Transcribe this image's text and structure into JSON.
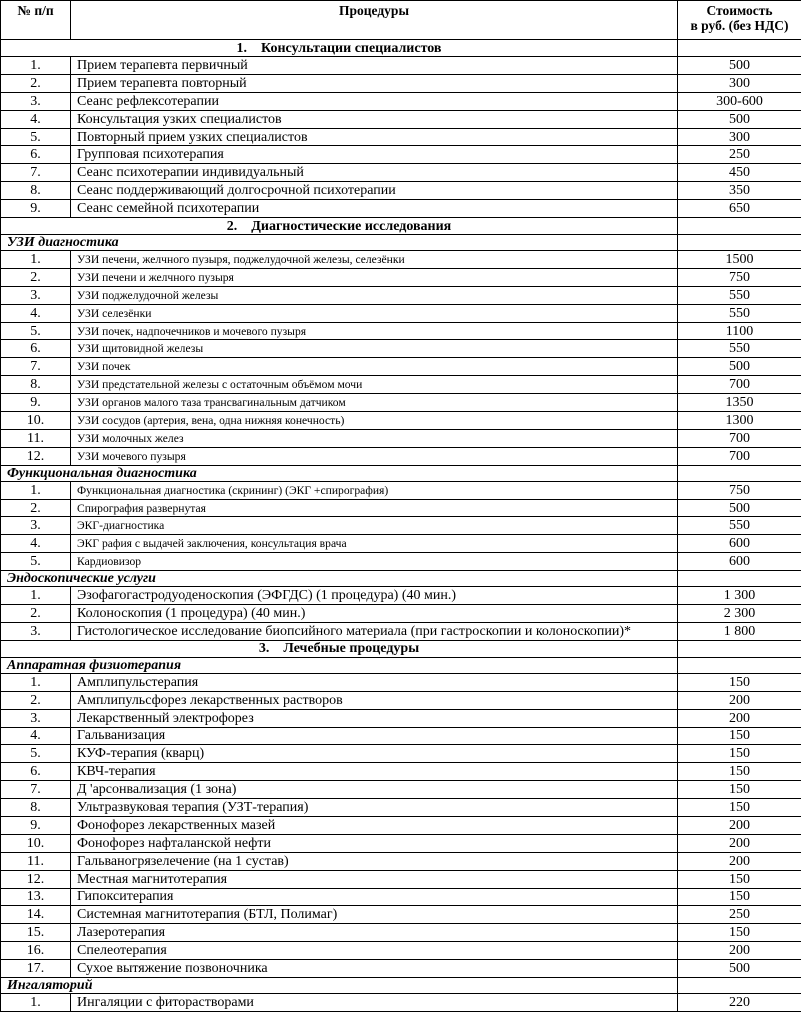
{
  "header": {
    "num": "№ п/п",
    "procedures": "Процедуры",
    "cost": [
      "Стоимость",
      "в руб. (без НДС)"
    ]
  },
  "sections": [
    {
      "number": "1.",
      "title": "Консультации специалистов",
      "items": [
        [
          "1.",
          "Прием терапевта первичный",
          "500"
        ],
        [
          "2.",
          "Прием терапевта повторный",
          "300"
        ],
        [
          "3.",
          "Сеанс рефлексотерапии",
          "300-600"
        ],
        [
          "4.",
          "Консультация узких специалистов",
          "500"
        ],
        [
          "5.",
          "Повторный прием узких специалистов",
          "300"
        ],
        [
          "6.",
          "Групповая психотерапия",
          "250"
        ],
        [
          "7.",
          "Сеанс психотерапии индивидуальный",
          "450"
        ],
        [
          "8.",
          "Сеанс поддерживающий долгосрочной психотерапии",
          "350"
        ],
        [
          "9.",
          "Сеанс семейной  психотерапии",
          "650"
        ]
      ]
    },
    {
      "number": "2.",
      "title": "Диагностические исследования",
      "groups": [
        {
          "title": "УЗИ диагностика",
          "items": [
            [
              "1.",
              "УЗИ  печени, желчного пузыря, поджелудочной  железы, селезёнки",
              "1500"
            ],
            [
              "2.",
              "УЗИ  печени  и желчного пузыря",
              "750"
            ],
            [
              "3.",
              "УЗИ поджелудочной  железы",
              "550"
            ],
            [
              "4.",
              "УЗИ  селезёнки",
              "550"
            ],
            [
              "5.",
              "УЗИ  почек, надпочечников и мочевого  пузыря",
              "1100"
            ],
            [
              "6.",
              "УЗИ  щитовидной железы",
              "550"
            ],
            [
              "7.",
              "УЗИ  почек",
              "500"
            ],
            [
              "8.",
              "УЗИ предстательной  железы с остаточным объёмом  мочи",
              "700"
            ],
            [
              "9.",
              "УЗИ органов  малого таза  трансвагинальным  датчиком",
              "1350"
            ],
            [
              "10.",
              "УЗИ сосудов (артерия, вена, одна нижняя конечность)",
              "1300"
            ],
            [
              "11.",
              "УЗИ  молочных желез",
              "700"
            ],
            [
              "12.",
              "УЗИ мочевого пузыря",
              "700"
            ]
          ]
        },
        {
          "title": "Функциональная диагностика",
          "items": [
            [
              "1.",
              "Функциональная диагностика (скрининг) (ЭКГ +спирография)",
              "750"
            ],
            [
              "2.",
              "Спирография развернутая",
              "500"
            ],
            [
              "3.",
              "ЭКГ-диагностика",
              "550"
            ],
            [
              "4.",
              "ЭКГ рафия с выдачей заключения, консультация врача",
              "600"
            ],
            [
              "5.",
              "Кардиовизор",
              "600"
            ]
          ]
        },
        {
          "title": "Эндоскопические услуги",
          "items": [
            [
              "1.",
              "Эзофагогастродуоденоскопия (ЭФГДС) (1 процедура) (40 мин.)",
              "1 300"
            ],
            [
              "2.",
              "Колоноскопия (1 процедура) (40 мин.)",
              "2 300"
            ],
            [
              "3.",
              "Гистологическое исследование биопсийного материала (при гастроскопии и колоноскопии)*",
              "1 800"
            ]
          ]
        }
      ]
    },
    {
      "number": "3.",
      "title": "Лечебные процедуры",
      "groups": [
        {
          "title": "Аппаратная физиотерапия",
          "items": [
            [
              "1.",
              "Амплипульстерапия",
              "150"
            ],
            [
              "2.",
              "Амплипульсфорез лекарственных растворов",
              "200"
            ],
            [
              "3.",
              "Лекарственный электрофорез",
              "200"
            ],
            [
              "4.",
              "Гальванизация",
              "150"
            ],
            [
              "5.",
              "КУФ-терапия (кварц)",
              "150"
            ],
            [
              "6.",
              "КВЧ-терапия",
              "150"
            ],
            [
              "7.",
              "Д 'арсонвализация (1 зона)",
              "150"
            ],
            [
              "8.",
              "Ультразвуковая терапия (УЗТ-терапия)",
              "150"
            ],
            [
              "9.",
              "Фонофорез лекарственных мазей",
              "200"
            ],
            [
              "10.",
              "Фонофорез нафталанской нефти",
              "200"
            ],
            [
              "11.",
              "Гальваногрязелечение (на 1 сустав)",
              "200"
            ],
            [
              "12.",
              "Местная  магнитотерапия",
              "150"
            ],
            [
              "13.",
              "Гипокситерапия",
              "150"
            ],
            [
              "14.",
              "Системная магнитотерапия (БТЛ, Полимаг)",
              "250"
            ],
            [
              "15.",
              "Лазеротерапия",
              "150"
            ],
            [
              "16.",
              "Спелеотерапия",
              "200"
            ],
            [
              "17.",
              "Сухое вытяжение позвоночника",
              "500"
            ]
          ]
        },
        {
          "title": "Ингаляторий",
          "items": [
            [
              "1.",
              "Ингаляции с фиторастворами",
              "220"
            ]
          ]
        }
      ]
    }
  ]
}
